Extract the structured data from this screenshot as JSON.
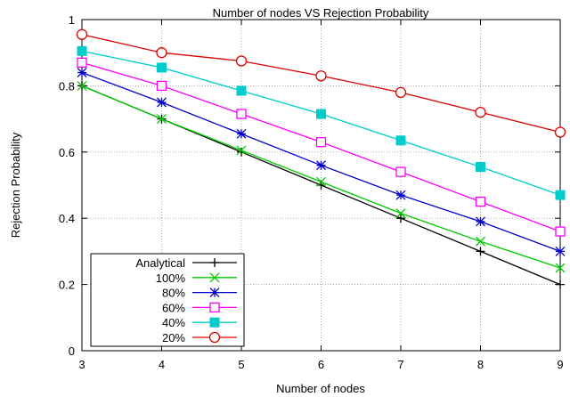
{
  "chart_data": {
    "type": "line",
    "title": "Number of nodes VS Rejection Probability",
    "xlabel": "Number of nodes",
    "ylabel": "Rejection Probability",
    "xlim": [
      3,
      9
    ],
    "ylim": [
      0,
      1
    ],
    "x_ticks": [
      "3",
      "4",
      "5",
      "6",
      "7",
      "8",
      "9"
    ],
    "y_ticks": [
      "0",
      "0.2",
      "0.4",
      "0.6",
      "0.8",
      "1"
    ],
    "grid": true,
    "legend_position": "bottom-left",
    "x": [
      3,
      4,
      5,
      6,
      7,
      8,
      9
    ],
    "series": [
      {
        "name": "Analytical",
        "color": "#000000",
        "marker": "plus",
        "values": [
          0.8,
          0.7,
          0.6,
          0.5,
          0.4,
          0.3,
          0.2
        ]
      },
      {
        "name": "100%",
        "color": "#00cc00",
        "marker": "cross",
        "values": [
          0.8,
          0.7,
          0.605,
          0.51,
          0.415,
          0.33,
          0.25
        ]
      },
      {
        "name": "80%",
        "color": "#0000cc",
        "marker": "star",
        "values": [
          0.84,
          0.75,
          0.655,
          0.56,
          0.47,
          0.39,
          0.3
        ]
      },
      {
        "name": "60%",
        "color": "#ff00ff",
        "marker": "square-open",
        "values": [
          0.87,
          0.8,
          0.715,
          0.63,
          0.54,
          0.45,
          0.36
        ]
      },
      {
        "name": "40%",
        "color": "#00cccc",
        "marker": "square-filled",
        "values": [
          0.905,
          0.855,
          0.785,
          0.715,
          0.635,
          0.555,
          0.47
        ]
      },
      {
        "name": "20%",
        "color": "#dd0000",
        "marker": "circle-open",
        "values": [
          0.955,
          0.9,
          0.875,
          0.83,
          0.78,
          0.72,
          0.66
        ]
      }
    ]
  }
}
